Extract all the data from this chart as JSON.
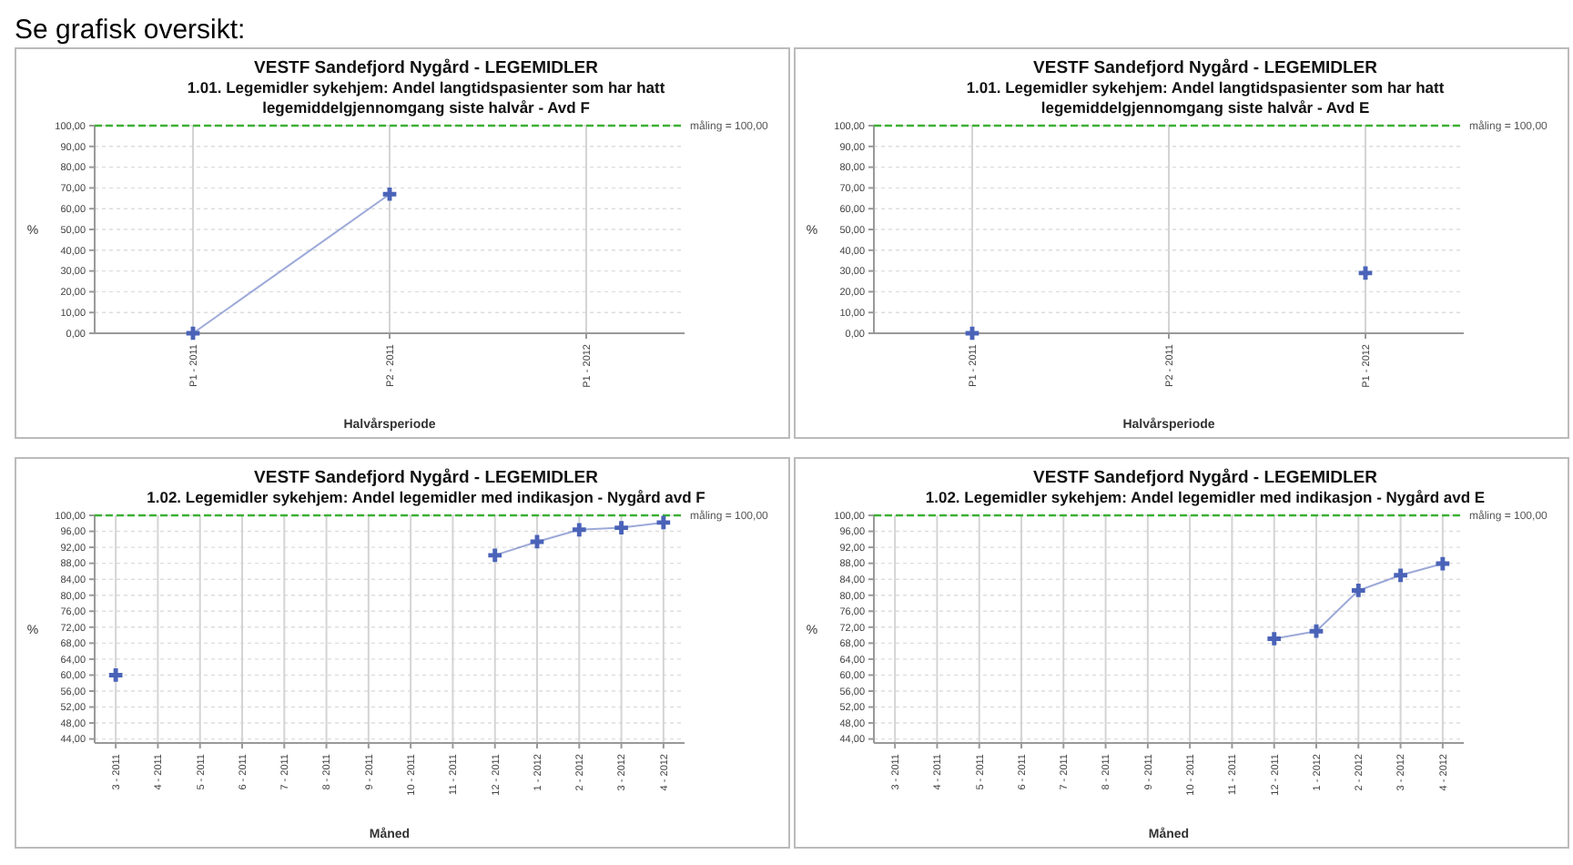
{
  "chart_data": [
    {
      "type": "line",
      "title": "VESTF Sandefjord Nygård - LEGEMIDLER",
      "subtitle": "1.01. Legemidler sykehjem: Andel langtidspasienter som har hatt legemiddelgjennomgang siste halvår - Avd F",
      "xlabel": "Halvårsperiode",
      "ylabel": "%",
      "annotations": [
        "Se grafisk oversikt:"
      ],
      "categories": [
        "P1 - 2011",
        "P2 - 2011",
        "P1 - 2012"
      ],
      "series": [
        {
          "color": "#4a63b8",
          "values": [
            0,
            67,
            null
          ]
        }
      ],
      "ylim": [
        0,
        100
      ],
      "yticks": [
        {
          "value": 0,
          "label": "0,00"
        },
        {
          "value": 10,
          "label": "10,00"
        },
        {
          "value": 20,
          "label": "20,00"
        },
        {
          "value": 30,
          "label": "30,00"
        },
        {
          "value": 40,
          "label": "40,00"
        },
        {
          "value": 50,
          "label": "50,00"
        },
        {
          "value": 60,
          "label": "60,00"
        },
        {
          "value": 70,
          "label": "70,00"
        },
        {
          "value": 80,
          "label": "80,00"
        },
        {
          "value": 90,
          "label": "90,00"
        },
        {
          "value": 100,
          "label": "100,00"
        }
      ],
      "ref_lines": [
        {
          "axis": "y",
          "value": 100,
          "label": "måling = 100,00",
          "color": "#3cb034",
          "line_style": "dashed"
        }
      ],
      "grid": true,
      "marker": "cross",
      "line_style": "solid"
    },
    {
      "type": "scatter",
      "title": "VESTF Sandefjord Nygård - LEGEMIDLER",
      "subtitle": "1.01. Legemidler sykehjem: Andel langtidspasienter som har hatt legemiddelgjennomgang siste halvår - Avd E",
      "xlabel": "Halvårsperiode",
      "ylabel": "%",
      "categories": [
        "P1 - 2011",
        "P2 - 2011",
        "P1 - 2012"
      ],
      "series": [
        {
          "color": "#4a63b8",
          "values": [
            0,
            null,
            29
          ]
        }
      ],
      "ylim": [
        0,
        100
      ],
      "yticks": [
        {
          "value": 0,
          "label": "0,00"
        },
        {
          "value": 10,
          "label": "10,00"
        },
        {
          "value": 20,
          "label": "20,00"
        },
        {
          "value": 30,
          "label": "30,00"
        },
        {
          "value": 40,
          "label": "40,00"
        },
        {
          "value": 50,
          "label": "50,00"
        },
        {
          "value": 60,
          "label": "60,00"
        },
        {
          "value": 70,
          "label": "70,00"
        },
        {
          "value": 80,
          "label": "80,00"
        },
        {
          "value": 90,
          "label": "90,00"
        },
        {
          "value": 100,
          "label": "100,00"
        }
      ],
      "ref_lines": [
        {
          "axis": "y",
          "value": 100,
          "label": "måling = 100,00",
          "color": "#3cb034",
          "line_style": "dashed"
        }
      ],
      "grid": true,
      "marker": "cross"
    },
    {
      "type": "line",
      "title": "VESTF Sandefjord Nygård - LEGEMIDLER",
      "subtitle": "1.02. Legemidler sykehjem: Andel legemidler med indikasjon - Nygård avd F",
      "xlabel": "Måned",
      "ylabel": "%",
      "categories": [
        "3 - 2011",
        "4 - 2011",
        "5 - 2011",
        "6 - 2011",
        "7 - 2011",
        "8 - 2011",
        "9 - 2011",
        "10 - 2011",
        "11 - 2011",
        "12 - 2011",
        "1 - 2012",
        "2 - 2012",
        "3 - 2012",
        "4 - 2012"
      ],
      "series": [
        {
          "color": "#4a63b8",
          "values": [
            60,
            null,
            null,
            null,
            null,
            null,
            null,
            null,
            null,
            90,
            93.4,
            96.4,
            96.9,
            98.2
          ]
        }
      ],
      "ylim": [
        43,
        100
      ],
      "yticks": [
        {
          "value": 44,
          "label": "44,00"
        },
        {
          "value": 48,
          "label": "48,00"
        },
        {
          "value": 52,
          "label": "52,00"
        },
        {
          "value": 56,
          "label": "56,00"
        },
        {
          "value": 60,
          "label": "60,00"
        },
        {
          "value": 64,
          "label": "64,00"
        },
        {
          "value": 68,
          "label": "68,00"
        },
        {
          "value": 72,
          "label": "72,00"
        },
        {
          "value": 76,
          "label": "76,00"
        },
        {
          "value": 80,
          "label": "80,00"
        },
        {
          "value": 84,
          "label": "84,00"
        },
        {
          "value": 88,
          "label": "88,00"
        },
        {
          "value": 92,
          "label": "92,00"
        },
        {
          "value": 96,
          "label": "96,00"
        },
        {
          "value": 100,
          "label": "100,00"
        }
      ],
      "ref_lines": [
        {
          "axis": "y",
          "value": 100,
          "label": "måling = 100,00",
          "color": "#3cb034",
          "line_style": "dashed"
        }
      ],
      "grid": true,
      "marker": "cross",
      "line_style": "solid"
    },
    {
      "type": "line",
      "title": "VESTF Sandefjord Nygård - LEGEMIDLER",
      "subtitle": "1.02. Legemidler sykehjem: Andel legemidler med indikasjon - Nygård avd E",
      "xlabel": "Måned",
      "ylabel": "%",
      "categories": [
        "3 - 2011",
        "4 - 2011",
        "5 - 2011",
        "6 - 2011",
        "7 - 2011",
        "8 - 2011",
        "9 - 2011",
        "10 - 2011",
        "11 - 2011",
        "12 - 2011",
        "1 - 2012",
        "2 - 2012",
        "3 - 2012",
        "4 - 2012"
      ],
      "series": [
        {
          "color": "#4a63b8",
          "values": [
            null,
            null,
            null,
            null,
            null,
            null,
            null,
            null,
            null,
            69.1,
            71,
            81.2,
            85,
            87.9
          ]
        }
      ],
      "ylim": [
        43,
        100
      ],
      "yticks": [
        {
          "value": 44,
          "label": "44,00"
        },
        {
          "value": 48,
          "label": "48,00"
        },
        {
          "value": 52,
          "label": "52,00"
        },
        {
          "value": 56,
          "label": "56,00"
        },
        {
          "value": 60,
          "label": "60,00"
        },
        {
          "value": 64,
          "label": "64,00"
        },
        {
          "value": 68,
          "label": "68,00"
        },
        {
          "value": 72,
          "label": "72,00"
        },
        {
          "value": 76,
          "label": "76,00"
        },
        {
          "value": 80,
          "label": "80,00"
        },
        {
          "value": 84,
          "label": "84,00"
        },
        {
          "value": 88,
          "label": "88,00"
        },
        {
          "value": 92,
          "label": "92,00"
        },
        {
          "value": 96,
          "label": "96,00"
        },
        {
          "value": 100,
          "label": "100,00"
        }
      ],
      "ref_lines": [
        {
          "axis": "y",
          "value": 100,
          "label": "måling = 100,00",
          "color": "#3cb034",
          "line_style": "dashed"
        }
      ],
      "grid": true,
      "marker": "cross",
      "line_style": "solid"
    }
  ]
}
